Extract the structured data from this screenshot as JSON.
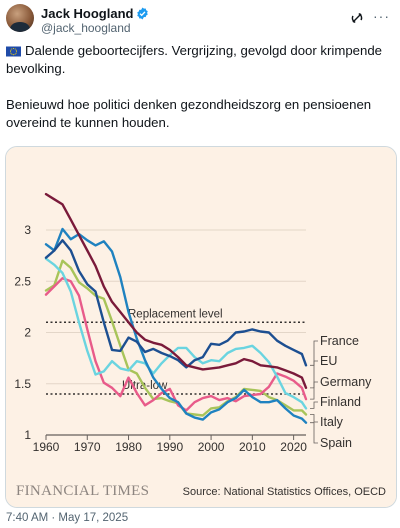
{
  "tweet": {
    "display_name": "Jack Hoogland",
    "handle": "@jack_hoogland",
    "paragraph1": "Dalende geboortecijfers. Vergrijzing, gevolgd door krimpende bevolking.",
    "paragraph2": "Benieuwd hoe politici denken gezondheidszorg en pensioenen overeind te kunnen houden.",
    "flag_icon": "eu-flag-icon",
    "timestamp": "7:40 AM · May 17, 2025"
  },
  "chart_source": "Source: National Statistics Offices, OECD",
  "chart_brand": "FINANCIAL TIMES",
  "colors": {
    "background": "#fdf1e5",
    "France": "#1d4f91",
    "EU": "#7a1a3a",
    "Germany": "#e85b8a",
    "Finland": "#6ad4e0",
    "Italy": "#a8c45a",
    "Spain": "#1f82c0"
  },
  "chart_data": {
    "type": "line",
    "xlim": [
      1960,
      2023
    ],
    "ylim": [
      1,
      3.4
    ],
    "x_ticks": [
      1960,
      1970,
      1980,
      1990,
      2000,
      2010,
      2020
    ],
    "y_ticks": [
      1,
      1.5,
      2,
      2.5,
      3
    ],
    "y_tick_labels": [
      "1",
      "1.5",
      "2",
      "2.5",
      "3"
    ],
    "reference_lines": [
      {
        "label": "Replacement level",
        "value": 2.1
      },
      {
        "label": "Ultra-low",
        "value": 1.4
      }
    ],
    "series": [
      {
        "name": "France",
        "points": [
          [
            1960,
            2.73
          ],
          [
            1962,
            2.8
          ],
          [
            1964,
            2.9
          ],
          [
            1966,
            2.8
          ],
          [
            1968,
            2.6
          ],
          [
            1970,
            2.47
          ],
          [
            1972,
            2.4
          ],
          [
            1974,
            2.1
          ],
          [
            1976,
            1.83
          ],
          [
            1978,
            1.82
          ],
          [
            1980,
            1.95
          ],
          [
            1982,
            1.91
          ],
          [
            1984,
            1.81
          ],
          [
            1986,
            1.84
          ],
          [
            1988,
            1.8
          ],
          [
            1990,
            1.77
          ],
          [
            1992,
            1.73
          ],
          [
            1994,
            1.66
          ],
          [
            1996,
            1.73
          ],
          [
            1998,
            1.76
          ],
          [
            2000,
            1.89
          ],
          [
            2002,
            1.88
          ],
          [
            2004,
            1.92
          ],
          [
            2006,
            2.0
          ],
          [
            2008,
            2.01
          ],
          [
            2010,
            2.03
          ],
          [
            2012,
            2.01
          ],
          [
            2014,
            2.0
          ],
          [
            2016,
            1.92
          ],
          [
            2018,
            1.87
          ],
          [
            2020,
            1.83
          ],
          [
            2022,
            1.79
          ],
          [
            2023,
            1.68
          ]
        ]
      },
      {
        "name": "EU",
        "points": [
          [
            1960,
            3.35
          ],
          [
            1962,
            3.3
          ],
          [
            1964,
            3.25
          ],
          [
            1966,
            3.1
          ],
          [
            1968,
            2.95
          ],
          [
            1970,
            2.8
          ],
          [
            1972,
            2.65
          ],
          [
            1974,
            2.45
          ],
          [
            1976,
            2.3
          ],
          [
            1978,
            2.2
          ],
          [
            1980,
            2.1
          ],
          [
            1982,
            2.0
          ],
          [
            1984,
            1.93
          ],
          [
            1986,
            1.9
          ],
          [
            1988,
            1.88
          ],
          [
            1990,
            1.83
          ],
          [
            1992,
            1.76
          ],
          [
            1994,
            1.68
          ],
          [
            1996,
            1.66
          ],
          [
            1998,
            1.64
          ],
          [
            2000,
            1.65
          ],
          [
            2002,
            1.66
          ],
          [
            2004,
            1.68
          ],
          [
            2006,
            1.7
          ],
          [
            2008,
            1.74
          ],
          [
            2010,
            1.72
          ],
          [
            2012,
            1.68
          ],
          [
            2014,
            1.67
          ],
          [
            2016,
            1.66
          ],
          [
            2018,
            1.63
          ],
          [
            2020,
            1.6
          ],
          [
            2022,
            1.56
          ],
          [
            2023,
            1.46
          ]
        ]
      },
      {
        "name": "Germany",
        "points": [
          [
            1960,
            2.37
          ],
          [
            1962,
            2.45
          ],
          [
            1964,
            2.53
          ],
          [
            1966,
            2.5
          ],
          [
            1968,
            2.36
          ],
          [
            1970,
            2.03
          ],
          [
            1972,
            1.72
          ],
          [
            1974,
            1.51
          ],
          [
            1976,
            1.46
          ],
          [
            1978,
            1.38
          ],
          [
            1980,
            1.56
          ],
          [
            1982,
            1.41
          ],
          [
            1984,
            1.29
          ],
          [
            1986,
            1.34
          ],
          [
            1988,
            1.41
          ],
          [
            1990,
            1.45
          ],
          [
            1992,
            1.29
          ],
          [
            1994,
            1.24
          ],
          [
            1996,
            1.32
          ],
          [
            1998,
            1.36
          ],
          [
            2000,
            1.38
          ],
          [
            2002,
            1.34
          ],
          [
            2004,
            1.36
          ],
          [
            2006,
            1.33
          ],
          [
            2008,
            1.38
          ],
          [
            2010,
            1.39
          ],
          [
            2012,
            1.4
          ],
          [
            2014,
            1.47
          ],
          [
            2016,
            1.6
          ],
          [
            2018,
            1.57
          ],
          [
            2020,
            1.53
          ],
          [
            2022,
            1.46
          ],
          [
            2023,
            1.35
          ]
        ]
      },
      {
        "name": "Finland",
        "points": [
          [
            1960,
            2.72
          ],
          [
            1962,
            2.66
          ],
          [
            1964,
            2.58
          ],
          [
            1966,
            2.4
          ],
          [
            1968,
            2.1
          ],
          [
            1970,
            1.82
          ],
          [
            1972,
            1.59
          ],
          [
            1974,
            1.62
          ],
          [
            1976,
            1.72
          ],
          [
            1978,
            1.65
          ],
          [
            1980,
            1.63
          ],
          [
            1982,
            1.72
          ],
          [
            1984,
            1.7
          ],
          [
            1986,
            1.6
          ],
          [
            1988,
            1.7
          ],
          [
            1990,
            1.78
          ],
          [
            1992,
            1.85
          ],
          [
            1994,
            1.85
          ],
          [
            1996,
            1.76
          ],
          [
            1998,
            1.7
          ],
          [
            2000,
            1.73
          ],
          [
            2002,
            1.72
          ],
          [
            2004,
            1.8
          ],
          [
            2006,
            1.84
          ],
          [
            2008,
            1.85
          ],
          [
            2010,
            1.87
          ],
          [
            2012,
            1.8
          ],
          [
            2014,
            1.71
          ],
          [
            2016,
            1.57
          ],
          [
            2018,
            1.41
          ],
          [
            2020,
            1.37
          ],
          [
            2022,
            1.32
          ],
          [
            2023,
            1.26
          ]
        ]
      },
      {
        "name": "Italy",
        "points": [
          [
            1960,
            2.41
          ],
          [
            1962,
            2.46
          ],
          [
            1964,
            2.7
          ],
          [
            1966,
            2.63
          ],
          [
            1968,
            2.49
          ],
          [
            1970,
            2.43
          ],
          [
            1972,
            2.36
          ],
          [
            1974,
            2.33
          ],
          [
            1976,
            2.11
          ],
          [
            1978,
            1.87
          ],
          [
            1980,
            1.64
          ],
          [
            1982,
            1.6
          ],
          [
            1984,
            1.46
          ],
          [
            1986,
            1.35
          ],
          [
            1988,
            1.36
          ],
          [
            1990,
            1.33
          ],
          [
            1992,
            1.31
          ],
          [
            1994,
            1.21
          ],
          [
            1996,
            1.2
          ],
          [
            1998,
            1.19
          ],
          [
            2000,
            1.26
          ],
          [
            2002,
            1.27
          ],
          [
            2004,
            1.33
          ],
          [
            2006,
            1.37
          ],
          [
            2008,
            1.45
          ],
          [
            2010,
            1.44
          ],
          [
            2012,
            1.43
          ],
          [
            2014,
            1.37
          ],
          [
            2016,
            1.34
          ],
          [
            2018,
            1.29
          ],
          [
            2020,
            1.24
          ],
          [
            2022,
            1.24
          ],
          [
            2023,
            1.2
          ]
        ]
      },
      {
        "name": "Spain",
        "points": [
          [
            1960,
            2.86
          ],
          [
            1962,
            2.8
          ],
          [
            1964,
            3.01
          ],
          [
            1966,
            2.91
          ],
          [
            1968,
            2.96
          ],
          [
            1970,
            2.9
          ],
          [
            1972,
            2.85
          ],
          [
            1974,
            2.89
          ],
          [
            1976,
            2.79
          ],
          [
            1978,
            2.54
          ],
          [
            1980,
            2.2
          ],
          [
            1982,
            1.94
          ],
          [
            1984,
            1.73
          ],
          [
            1986,
            1.56
          ],
          [
            1988,
            1.45
          ],
          [
            1990,
            1.36
          ],
          [
            1992,
            1.32
          ],
          [
            1994,
            1.21
          ],
          [
            1996,
            1.17
          ],
          [
            1998,
            1.15
          ],
          [
            2000,
            1.22
          ],
          [
            2002,
            1.25
          ],
          [
            2004,
            1.32
          ],
          [
            2006,
            1.36
          ],
          [
            2008,
            1.44
          ],
          [
            2010,
            1.37
          ],
          [
            2012,
            1.32
          ],
          [
            2014,
            1.32
          ],
          [
            2016,
            1.34
          ],
          [
            2018,
            1.26
          ],
          [
            2020,
            1.19
          ],
          [
            2022,
            1.16
          ],
          [
            2023,
            1.12
          ]
        ]
      }
    ]
  }
}
